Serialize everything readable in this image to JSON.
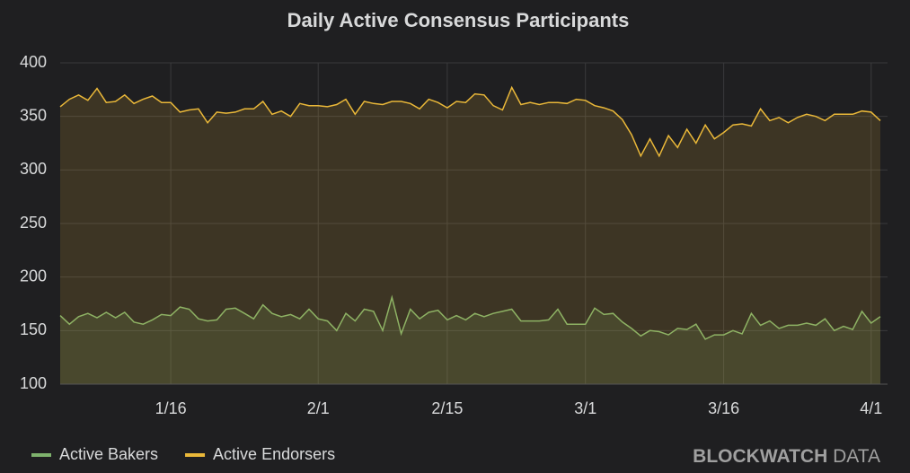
{
  "chart_data": {
    "type": "area-line",
    "title": "Daily Active Consensus Participants",
    "categories": [
      null,
      null,
      null,
      null,
      null,
      null,
      null,
      null,
      null,
      null,
      null,
      null,
      "1/16",
      null,
      null,
      null,
      null,
      null,
      null,
      null,
      null,
      null,
      null,
      null,
      null,
      null,
      null,
      null,
      "2/1",
      null,
      null,
      null,
      null,
      null,
      null,
      null,
      null,
      null,
      null,
      null,
      null,
      null,
      "2/15",
      null,
      null,
      null,
      null,
      null,
      null,
      null,
      null,
      null,
      null,
      null,
      null,
      null,
      null,
      "3/1",
      null,
      null,
      null,
      null,
      null,
      null,
      null,
      null,
      null,
      null,
      null,
      null,
      null,
      null,
      "3/16",
      null,
      null,
      null,
      null,
      null,
      null,
      null,
      null,
      null,
      null,
      null,
      null,
      null,
      null,
      null,
      "4/1",
      null
    ],
    "series": [
      {
        "name": "Active Bakers",
        "color": "#7eb26d",
        "values": [
          164,
          156,
          163,
          166,
          162,
          167,
          162,
          167,
          158,
          156,
          160,
          165,
          164,
          172,
          170,
          161,
          159,
          160,
          170,
          171,
          166,
          161,
          174,
          166,
          163,
          165,
          161,
          170,
          161,
          159,
          150,
          166,
          159,
          170,
          168,
          150,
          181,
          147,
          170,
          161,
          167,
          169,
          160,
          164,
          160,
          166,
          163,
          166,
          168,
          170,
          159,
          159,
          159,
          160,
          170,
          156,
          156,
          156,
          171,
          165,
          166,
          158,
          152,
          145,
          150,
          149,
          146,
          152,
          151,
          156,
          142,
          146,
          146,
          150,
          147,
          166,
          155,
          159,
          152,
          155,
          155,
          157,
          155,
          161,
          150,
          154,
          151,
          168,
          157,
          163
        ]
      },
      {
        "name": "Active Endorsers",
        "color": "#eab839",
        "values": [
          359,
          366,
          370,
          365,
          376,
          363,
          364,
          370,
          362,
          366,
          369,
          363,
          363,
          354,
          356,
          357,
          344,
          354,
          353,
          354,
          357,
          357,
          364,
          352,
          355,
          350,
          362,
          360,
          360,
          359,
          361,
          366,
          352,
          364,
          362,
          361,
          364,
          364,
          362,
          357,
          366,
          363,
          358,
          364,
          363,
          371,
          370,
          360,
          356,
          377,
          361,
          363,
          361,
          363,
          363,
          362,
          366,
          365,
          360,
          358,
          355,
          347,
          333,
          313,
          329,
          313,
          332,
          321,
          338,
          325,
          342,
          329,
          335,
          342,
          343,
          341,
          357,
          346,
          349,
          344,
          349,
          352,
          350,
          346,
          352,
          352,
          352,
          355,
          354,
          346
        ]
      }
    ],
    "ylim": [
      100,
      400
    ],
    "yticks": [
      100,
      150,
      200,
      250,
      300,
      350,
      400
    ],
    "grid": true,
    "legend": "bottom-left",
    "watermark": [
      "BLOCKWATCH",
      "DATA"
    ]
  }
}
